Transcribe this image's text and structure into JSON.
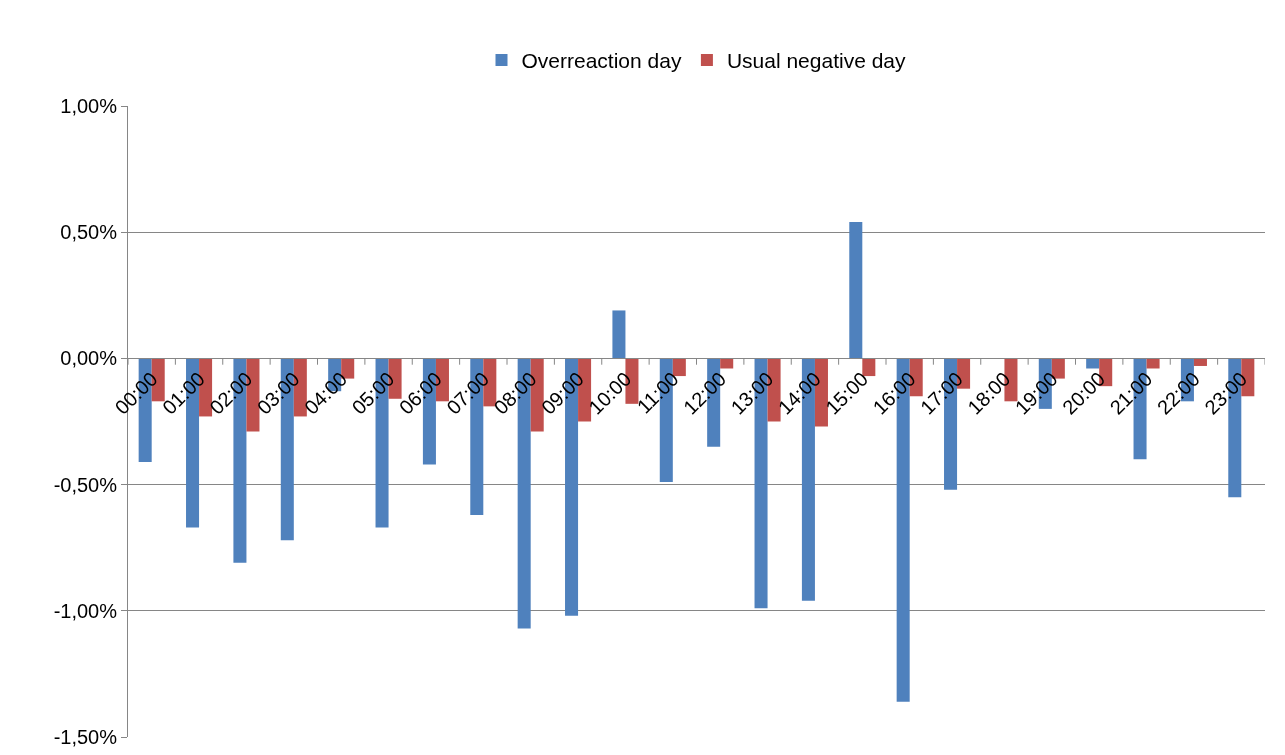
{
  "chart_data": {
    "type": "bar",
    "categories": [
      "00:00",
      "01:00",
      "02:00",
      "03:00",
      "04:00",
      "05:00",
      "06:00",
      "07:00",
      "08:00",
      "09:00",
      "10:00",
      "11:00",
      "12:00",
      "13:00",
      "14:00",
      "15:00",
      "16:00",
      "17:00",
      "18:00",
      "19:00",
      "20:00",
      "21:00",
      "22:00",
      "23:00"
    ],
    "series": [
      {
        "name": "Overreaction day",
        "color": "#4f81bd",
        "values": [
          -0.41,
          -0.67,
          -0.81,
          -0.72,
          -0.13,
          -0.67,
          -0.42,
          -0.62,
          -1.07,
          -1.02,
          0.19,
          -0.49,
          -0.35,
          -0.99,
          -0.96,
          0.54,
          -1.36,
          -0.52,
          0,
          -0.2,
          -0.04,
          -0.4,
          -0.17,
          -0.55
        ]
      },
      {
        "name": "Usual negative day",
        "color": "#c0504d",
        "values": [
          -0.17,
          -0.23,
          -0.29,
          -0.23,
          -0.08,
          -0.16,
          -0.17,
          -0.19,
          -0.29,
          -0.25,
          -0.18,
          -0.07,
          -0.04,
          -0.25,
          -0.27,
          -0.07,
          -0.15,
          -0.12,
          -0.17,
          -0.08,
          -0.11,
          -0.04,
          -0.03,
          -0.15
        ]
      }
    ],
    "ylim": [
      -1.5,
      1
    ],
    "yticks": [
      {
        "value": -1.5,
        "label": "-1,50%"
      },
      {
        "value": -1,
        "label": "-1,00%"
      },
      {
        "value": -0.5,
        "label": "-0,50%"
      },
      {
        "value": 0,
        "label": "0,00%"
      },
      {
        "value": 0.5,
        "label": "0,50%"
      },
      {
        "value": 1,
        "label": "1,00%"
      }
    ],
    "grid": "y",
    "legend": "top"
  }
}
